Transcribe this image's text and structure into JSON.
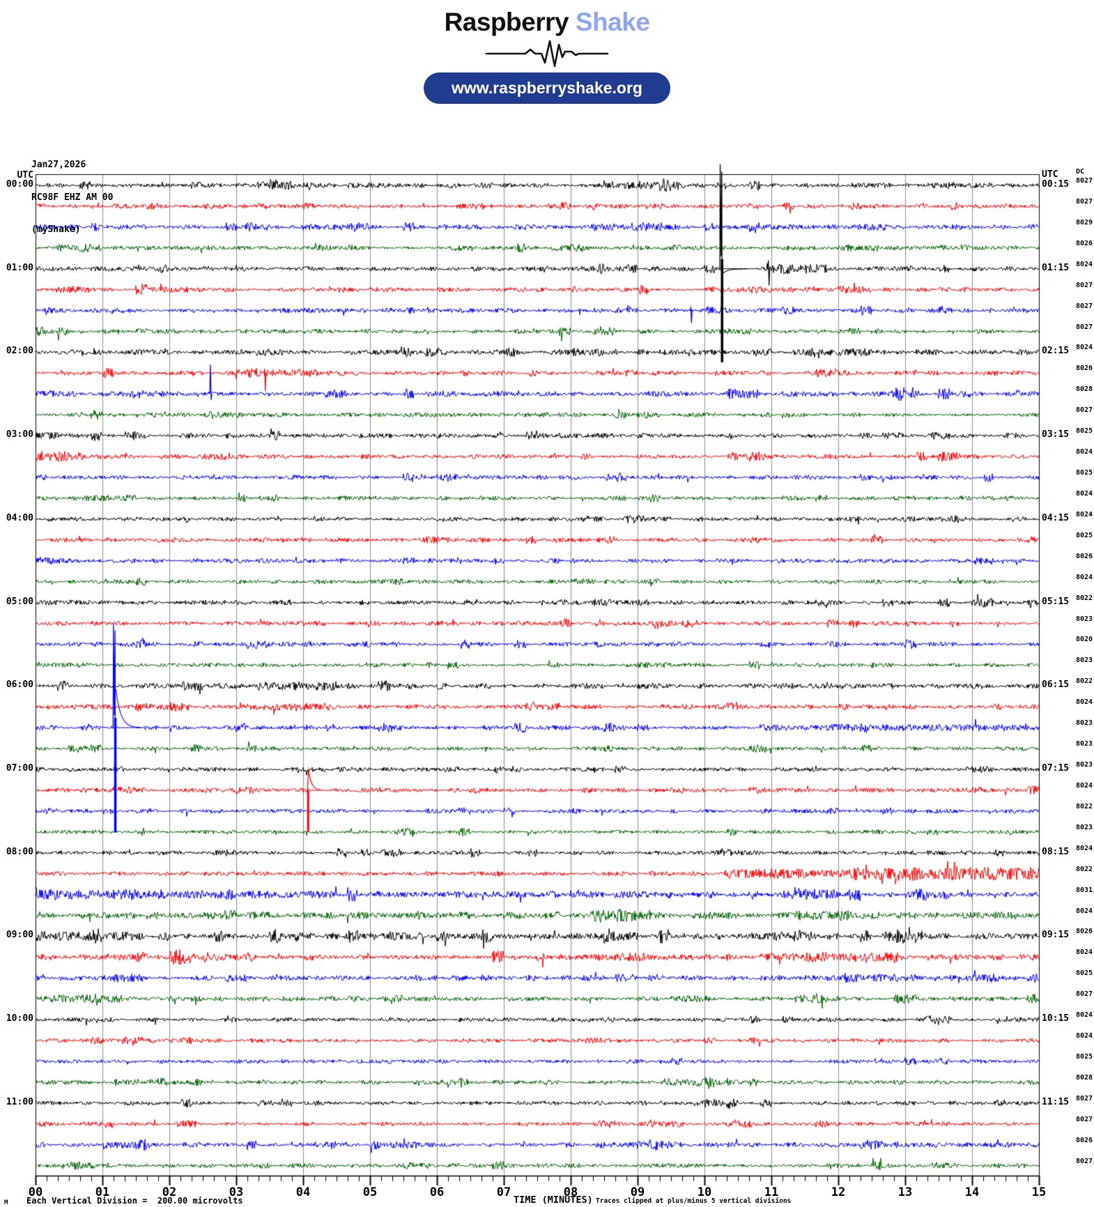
{
  "header": {
    "logo_primary": "Raspberry",
    "logo_secondary": "Shake",
    "website": "www.raspberryshake.org",
    "colors": {
      "logo_primary": "#101010",
      "logo_secondary": "#8ea6ee",
      "pill_bg": "#1f3c90",
      "pill_text": "#ffffff"
    }
  },
  "station": {
    "date": "Jan27,2026",
    "id": "RC98F EHZ AM 00",
    "network": "(myShake)"
  },
  "axis": {
    "utc_left": "UTC",
    "utc_right": "UTC",
    "dc_header": "DC",
    "x_ticks": [
      "00",
      "01",
      "02",
      "03",
      "04",
      "05",
      "06",
      "07",
      "08",
      "09",
      "10",
      "11",
      "12",
      "13",
      "14",
      "15"
    ],
    "x_label": "TIME (MINUTES)",
    "clip_note": "Traces clipped at plus/minus 5 vertical divisions",
    "scale_note": "Each Vertical Division =  200.00 microvolts",
    "corner_glyph": "M"
  },
  "chart_data": {
    "type": "line",
    "title": "RC98F EHZ AM 00 helicorder, Jan27,2026",
    "x_range_minutes": [
      0,
      15
    ],
    "minutes_per_line": 15,
    "minor_ticks_per_minute": 6,
    "clip_divisions": 5,
    "grid_color": "#8c8c8c",
    "border_color": "#000000",
    "trace_colors": [
      "#000000",
      "#ff0000",
      "#0000ff",
      "#006400"
    ],
    "rows": [
      {
        "color": 0,
        "dc": 8027,
        "left": "00:00",
        "right": "00:15",
        "amp": 1.6,
        "bursts": [
          [
            3.3,
            3.9,
            1.5
          ],
          [
            4.9,
            5.3,
            1.5
          ],
          [
            8.8,
            9.7,
            1.5
          ],
          [
            13.6,
            14.0,
            1.2
          ]
        ],
        "quiet": []
      },
      {
        "color": 1,
        "dc": 8027,
        "left": null,
        "right": null,
        "amp": 1.4,
        "bursts": [
          [
            2.5,
            2.9,
            1.2
          ],
          [
            6.3,
            6.7,
            1.5
          ],
          [
            9.1,
            9.4,
            1.5
          ],
          [
            12.2,
            12.6,
            1.2
          ]
        ],
        "quiet": []
      },
      {
        "color": 2,
        "dc": 8029,
        "left": null,
        "right": null,
        "amp": 1.6,
        "bursts": [
          [
            4.0,
            4.6,
            1.2
          ],
          [
            8.3,
            9.4,
            1.8
          ],
          [
            12.2,
            12.7,
            1.5
          ]
        ],
        "quiet": []
      },
      {
        "color": 3,
        "dc": 8026,
        "left": null,
        "right": null,
        "amp": 1.4,
        "bursts": [
          [
            0.3,
            1.0,
            1.3
          ],
          [
            6.2,
            6.6,
            1.5
          ],
          [
            7.7,
            8.2,
            1.8
          ],
          [
            12.1,
            12.6,
            1.5
          ]
        ],
        "quiet": []
      },
      {
        "color": 0,
        "dc": 8024,
        "left": "01:00",
        "right": "01:15",
        "amp": 1.5,
        "bursts": [
          [
            8.4,
            9.0,
            1.5
          ],
          [
            11.0,
            11.5,
            1.2
          ]
        ],
        "quiet": [
          [
            10.28,
            10.75
          ]
        ]
      },
      {
        "color": 1,
        "dc": 8027,
        "left": null,
        "right": null,
        "amp": 1.4,
        "bursts": [
          [
            0.3,
            0.8,
            1.5
          ],
          [
            1.5,
            2.3,
            1.5
          ],
          [
            10.5,
            11.0,
            1.3
          ],
          [
            12.0,
            12.4,
            1.5
          ]
        ],
        "quiet": []
      },
      {
        "color": 2,
        "dc": 8027,
        "left": null,
        "right": null,
        "amp": 1.5,
        "bursts": [
          [
            9.9,
            10.4,
            1.5
          ],
          [
            13.3,
            13.7,
            1.3
          ]
        ],
        "quiet": []
      },
      {
        "color": 3,
        "dc": 8027,
        "left": null,
        "right": null,
        "amp": 1.4,
        "bursts": [
          [
            0.0,
            0.5,
            1.5
          ],
          [
            10.2,
            10.7,
            1.3
          ]
        ],
        "quiet": []
      },
      {
        "color": 0,
        "dc": 8024,
        "left": "02:00",
        "right": "02:15",
        "amp": 1.7,
        "bursts": [
          [
            3.3,
            3.7,
            1.8
          ],
          [
            8.0,
            8.7,
            1.8
          ],
          [
            11.7,
            12.7,
            1.5
          ]
        ],
        "quiet": []
      },
      {
        "color": 1,
        "dc": 8026,
        "left": null,
        "right": null,
        "amp": 1.5,
        "bursts": [
          [
            3.0,
            4.3,
            1.8
          ]
        ],
        "quiet": []
      },
      {
        "color": 2,
        "dc": 8028,
        "left": null,
        "right": null,
        "amp": 1.7,
        "bursts": [
          [
            0.0,
            0.6,
            1.8
          ],
          [
            10.3,
            10.8,
            1.5
          ],
          [
            12.8,
            13.2,
            1.5
          ]
        ],
        "quiet": []
      },
      {
        "color": 3,
        "dc": 8027,
        "left": null,
        "right": null,
        "amp": 1.4,
        "bursts": [
          [
            2.6,
            3.1,
            1.5
          ]
        ],
        "quiet": []
      },
      {
        "color": 0,
        "dc": 8025,
        "left": "03:00",
        "right": "03:15",
        "amp": 1.6,
        "bursts": [
          [
            0.0,
            0.4,
            1.5
          ],
          [
            13.4,
            13.8,
            1.3
          ]
        ],
        "quiet": []
      },
      {
        "color": 1,
        "dc": 8024,
        "left": null,
        "right": null,
        "amp": 1.5,
        "bursts": [
          [
            0.0,
            0.7,
            1.8
          ],
          [
            2.5,
            2.9,
            1.5
          ],
          [
            10.4,
            10.9,
            1.5
          ]
        ],
        "quiet": []
      },
      {
        "color": 2,
        "dc": 8025,
        "left": null,
        "right": null,
        "amp": 1.4,
        "bursts": [
          [
            5.9,
            6.3,
            1.3
          ]
        ],
        "quiet": []
      },
      {
        "color": 3,
        "dc": 8024,
        "left": null,
        "right": null,
        "amp": 1.4,
        "bursts": [
          [
            0.7,
            1.1,
            1.5
          ],
          [
            6.6,
            7.0,
            1.3
          ]
        ],
        "quiet": []
      },
      {
        "color": 0,
        "dc": 8024,
        "left": "04:00",
        "right": "04:15",
        "amp": 1.5,
        "bursts": [
          [
            8.8,
            9.1,
            1.5
          ]
        ],
        "quiet": []
      },
      {
        "color": 1,
        "dc": 8025,
        "left": null,
        "right": null,
        "amp": 1.4,
        "bursts": [
          [
            5.8,
            6.2,
            1.2
          ],
          [
            8.4,
            8.7,
            1.3
          ]
        ],
        "quiet": []
      },
      {
        "color": 2,
        "dc": 8026,
        "left": null,
        "right": null,
        "amp": 1.5,
        "bursts": [
          [
            0.0,
            0.5,
            1.3
          ]
        ],
        "quiet": []
      },
      {
        "color": 3,
        "dc": 8024,
        "left": null,
        "right": null,
        "amp": 1.4,
        "bursts": [
          [
            5.0,
            5.5,
            1.2
          ],
          [
            8.0,
            8.4,
            1.2
          ]
        ],
        "quiet": []
      },
      {
        "color": 0,
        "dc": 8022,
        "left": "05:00",
        "right": "05:15",
        "amp": 1.5,
        "bursts": [
          [
            6.3,
            6.6,
            1.5
          ],
          [
            8.3,
            8.6,
            1.3
          ]
        ],
        "quiet": []
      },
      {
        "color": 1,
        "dc": 8023,
        "left": null,
        "right": null,
        "amp": 1.4,
        "bursts": [
          [
            9.2,
            9.6,
            1.3
          ]
        ],
        "quiet": []
      },
      {
        "color": 2,
        "dc": 8020,
        "left": null,
        "right": null,
        "amp": 1.5,
        "bursts": [
          [
            3.4,
            3.9,
            1.3
          ]
        ],
        "quiet": []
      },
      {
        "color": 3,
        "dc": 8023,
        "left": null,
        "right": null,
        "amp": 1.3,
        "bursts": [],
        "quiet": []
      },
      {
        "color": 0,
        "dc": 8022,
        "left": "06:00",
        "right": "06:15",
        "amp": 1.7,
        "bursts": [
          [
            3.3,
            4.6,
            1.5
          ],
          [
            5.3,
            5.8,
            1.3
          ]
        ],
        "quiet": []
      },
      {
        "color": 1,
        "dc": 8024,
        "left": null,
        "right": null,
        "amp": 1.6,
        "bursts": [
          [
            1.5,
            2.3,
            1.8
          ],
          [
            3.4,
            4.4,
            1.8
          ]
        ],
        "quiet": []
      },
      {
        "color": 2,
        "dc": 8023,
        "left": null,
        "right": null,
        "amp": 1.6,
        "bursts": [
          [
            11.0,
            15.0,
            1.0
          ]
        ],
        "quiet": [
          [
            1.23,
            1.62
          ]
        ]
      },
      {
        "color": 3,
        "dc": 8023,
        "left": null,
        "right": null,
        "amp": 1.4,
        "bursts": [
          [
            0.5,
            1.0,
            1.5
          ]
        ],
        "quiet": []
      },
      {
        "color": 0,
        "dc": 8023,
        "left": "07:00",
        "right": "07:15",
        "amp": 1.5,
        "bursts": [
          [
            7.1,
            7.3,
            2.0
          ],
          [
            13.9,
            14.3,
            1.3
          ]
        ],
        "quiet": []
      },
      {
        "color": 1,
        "dc": 8024,
        "left": null,
        "right": null,
        "amp": 1.4,
        "bursts": [
          [
            9.4,
            9.7,
            1.3
          ]
        ],
        "quiet": [
          [
            4.12,
            4.4
          ]
        ]
      },
      {
        "color": 2,
        "dc": 8022,
        "left": null,
        "right": null,
        "amp": 1.3,
        "bursts": [],
        "quiet": []
      },
      {
        "color": 3,
        "dc": 8023,
        "left": null,
        "right": null,
        "amp": 1.3,
        "bursts": [
          [
            5.4,
            5.7,
            1.3
          ]
        ],
        "quiet": []
      },
      {
        "color": 0,
        "dc": 8024,
        "left": "08:00",
        "right": "08:15",
        "amp": 1.4,
        "bursts": [
          [
            10.1,
            10.4,
            1.3
          ]
        ],
        "quiet": []
      },
      {
        "color": 1,
        "dc": 8022,
        "left": null,
        "right": null,
        "amp": 1.4,
        "bursts": [
          [
            10.3,
            12.2,
            2.5
          ],
          [
            12.2,
            15.0,
            4.5
          ]
        ],
        "quiet": []
      },
      {
        "color": 2,
        "dc": 8031,
        "left": null,
        "right": null,
        "amp": 2.2,
        "bursts": [
          [
            0.0,
            4.0,
            1.5
          ],
          [
            11.3,
            12.0,
            1.5
          ],
          [
            13.0,
            13.5,
            1.2
          ]
        ],
        "quiet": []
      },
      {
        "color": 3,
        "dc": 8024,
        "left": null,
        "right": null,
        "amp": 2.2,
        "bursts": [
          [
            2.5,
            3.0,
            1.3
          ],
          [
            8.3,
            9.2,
            2.2
          ],
          [
            11.6,
            12.4,
            1.5
          ]
        ],
        "quiet": []
      },
      {
        "color": 0,
        "dc": 8026,
        "left": "09:00",
        "right": "09:15",
        "amp": 2.2,
        "bursts": [
          [
            0.0,
            1.6,
            1.5
          ],
          [
            5.3,
            5.8,
            1.8
          ],
          [
            8.2,
            9.0,
            1.5
          ],
          [
            10.7,
            11.6,
            1.5
          ],
          [
            12.7,
            13.3,
            1.5
          ]
        ],
        "quiet": []
      },
      {
        "color": 1,
        "dc": 8024,
        "left": null,
        "right": null,
        "amp": 2.0,
        "bursts": [
          [
            2.0,
            3.3,
            1.5
          ],
          [
            8.4,
            9.1,
            1.5
          ],
          [
            11.0,
            12.9,
            1.8
          ]
        ],
        "quiet": []
      },
      {
        "color": 2,
        "dc": 8025,
        "left": null,
        "right": null,
        "amp": 1.7,
        "bursts": [
          [
            1.1,
            1.6,
            1.5
          ],
          [
            12.1,
            12.9,
            1.8
          ],
          [
            14.0,
            14.4,
            1.3
          ]
        ],
        "quiet": []
      },
      {
        "color": 3,
        "dc": 8027,
        "left": null,
        "right": null,
        "amp": 1.7,
        "bursts": [
          [
            0.0,
            1.3,
            1.8
          ],
          [
            9.6,
            10.1,
            1.3
          ],
          [
            11.6,
            12.0,
            1.3
          ]
        ],
        "quiet": []
      },
      {
        "color": 0,
        "dc": 8024,
        "left": "10:00",
        "right": "10:15",
        "amp": 1.4,
        "bursts": [
          [
            13.3,
            13.7,
            1.5
          ]
        ],
        "quiet": []
      },
      {
        "color": 1,
        "dc": 8024,
        "left": null,
        "right": null,
        "amp": 1.4,
        "bursts": [
          [
            1.3,
            1.8,
            1.5
          ],
          [
            8.2,
            8.6,
            1.3
          ]
        ],
        "quiet": []
      },
      {
        "color": 2,
        "dc": 8025,
        "left": null,
        "right": null,
        "amp": 1.3,
        "bursts": [],
        "quiet": []
      },
      {
        "color": 3,
        "dc": 8028,
        "left": null,
        "right": null,
        "amp": 1.4,
        "bursts": [
          [
            6.0,
            6.4,
            1.3
          ],
          [
            9.4,
            10.4,
            1.5
          ]
        ],
        "quiet": []
      },
      {
        "color": 0,
        "dc": 8027,
        "left": "11:00",
        "right": "11:15",
        "amp": 1.4,
        "bursts": [
          [
            3.3,
            3.7,
            1.3
          ],
          [
            10.0,
            10.4,
            1.2
          ]
        ],
        "quiet": []
      },
      {
        "color": 1,
        "dc": 8027,
        "left": null,
        "right": null,
        "amp": 1.3,
        "bursts": [
          [
            2.1,
            2.4,
            1.8
          ],
          [
            9.0,
            9.7,
            1.5
          ],
          [
            10.3,
            10.7,
            1.8
          ]
        ],
        "quiet": []
      },
      {
        "color": 2,
        "dc": 8026,
        "left": null,
        "right": null,
        "amp": 1.6,
        "bursts": [
          [
            1.0,
            1.7,
            1.5
          ],
          [
            5.2,
            5.7,
            1.5
          ],
          [
            9.0,
            9.6,
            1.5
          ],
          [
            12.4,
            12.9,
            1.3
          ]
        ],
        "quiet": []
      },
      {
        "color": 3,
        "dc": 8027,
        "left": null,
        "right": null,
        "amp": 1.4,
        "bursts": [
          [
            0.4,
            0.9,
            1.8
          ],
          [
            5.5,
            5.9,
            1.3
          ],
          [
            13.4,
            13.8,
            1.2
          ]
        ],
        "quiet": []
      }
    ],
    "events": [
      {
        "row": 5,
        "minute": 10.24,
        "type": "clipped",
        "up": 150,
        "down": 134,
        "thick": 3.5,
        "tail": -7
      },
      {
        "row": 5,
        "minute": 10.96,
        "type": "spike",
        "up": 12,
        "down": 24
      },
      {
        "row": 7,
        "minute": 9.8,
        "type": "spike",
        "up": 4,
        "down": 18
      },
      {
        "row": 10,
        "minute": 3.43,
        "type": "spike",
        "up": 6,
        "down": 26
      },
      {
        "row": 11,
        "minute": 2.62,
        "type": "spike",
        "up": 42,
        "down": 9
      },
      {
        "row": 27,
        "minute": 1.17,
        "type": "clipped",
        "up": 150,
        "down": 150,
        "thick": 3.5,
        "tail": 55
      },
      {
        "row": 30,
        "minute": 4.07,
        "type": "decay",
        "up": 29,
        "down": 60,
        "thick": 3
      }
    ]
  }
}
